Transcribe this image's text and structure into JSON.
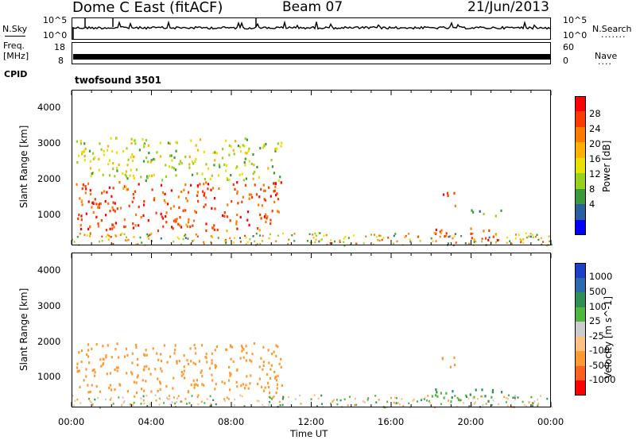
{
  "header": {
    "station": "Dome C East (fitACF)",
    "beam": "Beam 07",
    "date": "21/Jun/2013"
  },
  "panels": {
    "nsky_label": "N.Sky",
    "nsky_ticks": [
      "10^5",
      "10^0"
    ],
    "nsearch_label": "N.Search",
    "nsearch_ticks": [
      "10^5",
      "10^0"
    ],
    "freq_label_1": "Freq.",
    "freq_label_2": "[MHz]",
    "freq_ticks": [
      "18",
      "8"
    ],
    "nave_label": "Nave",
    "nave_ticks": [
      "60",
      "0"
    ],
    "cpid_label": "CPID",
    "cpid_value": "twofsound 3501"
  },
  "chart_data": [
    {
      "type": "heatmap",
      "parameter": "Power",
      "ylabel": "Slant Range [km]",
      "xlabel": "Time UT",
      "colorbar_label": "Power [dB]",
      "colorbar_ticks": [
        "28",
        "24",
        "20",
        "16",
        "12",
        "8",
        "4"
      ],
      "colorbar_colors": [
        "#ff0000",
        "#ff3a00",
        "#ff7a00",
        "#ffb000",
        "#e8e000",
        "#98d020",
        "#3a9a3a",
        "#2a5fa0",
        "#0000ff"
      ],
      "y_ticks": [
        "4000",
        "3000",
        "2000",
        "1000"
      ],
      "ylim": [
        180,
        4500
      ],
      "x_ticks": [
        "00:00",
        "04:00",
        "08:00",
        "12:00",
        "16:00",
        "20:00",
        "00:00"
      ],
      "xlim_hours": [
        0,
        24
      ],
      "echo_regions": [
        {
          "t_start": 0.2,
          "t_end": 10.5,
          "range_min": 600,
          "range_max": 2000,
          "typical_power_db": 24
        },
        {
          "t_start": 0.2,
          "t_end": 10.5,
          "range_min": 2000,
          "range_max": 3200,
          "typical_power_db": 12
        },
        {
          "t_start": 18.5,
          "t_end": 19.2,
          "range_min": 1300,
          "range_max": 1700,
          "typical_power_db": 24
        },
        {
          "t_start": 18.0,
          "t_end": 19.0,
          "range_min": 300,
          "range_max": 700,
          "typical_power_db": 24
        },
        {
          "t_start": 19.8,
          "t_end": 21.5,
          "range_min": 300,
          "range_max": 700,
          "typical_power_db": 26
        },
        {
          "t_start": 19.8,
          "t_end": 21.5,
          "range_min": 1000,
          "range_max": 1200,
          "typical_power_db": 8
        }
      ]
    },
    {
      "type": "heatmap",
      "parameter": "Velocity",
      "ylabel": "Slant Range [km]",
      "xlabel": "Time UT",
      "colorbar_label": "Velocity [m s^-1]",
      "colorbar_ticks": [
        "1000",
        "500",
        "100",
        "25",
        "-25",
        "-100",
        "-500",
        "-1000"
      ],
      "colorbar_colors": [
        "#1e40c8",
        "#2a6ab0",
        "#2f8f55",
        "#4fb83a",
        "#cccccc",
        "#ffc080",
        "#ff9a30",
        "#ff6020",
        "#ff0000"
      ],
      "y_ticks": [
        "4000",
        "3000",
        "2000",
        "1000"
      ],
      "ylim": [
        180,
        4500
      ],
      "x_ticks": [
        "00:00",
        "04:00",
        "08:00",
        "12:00",
        "16:00",
        "20:00",
        "00:00"
      ],
      "xlim_hours": [
        0,
        24
      ],
      "echo_regions": [
        {
          "t_start": 0.2,
          "t_end": 10.5,
          "range_min": 600,
          "range_max": 2000,
          "typical_velocity": -250
        },
        {
          "t_start": 18.0,
          "t_end": 21.5,
          "range_min": 300,
          "range_max": 700,
          "typical_velocity": 150
        },
        {
          "t_start": 18.5,
          "t_end": 19.2,
          "range_min": 1300,
          "range_max": 1700,
          "typical_velocity": -300
        }
      ]
    }
  ]
}
